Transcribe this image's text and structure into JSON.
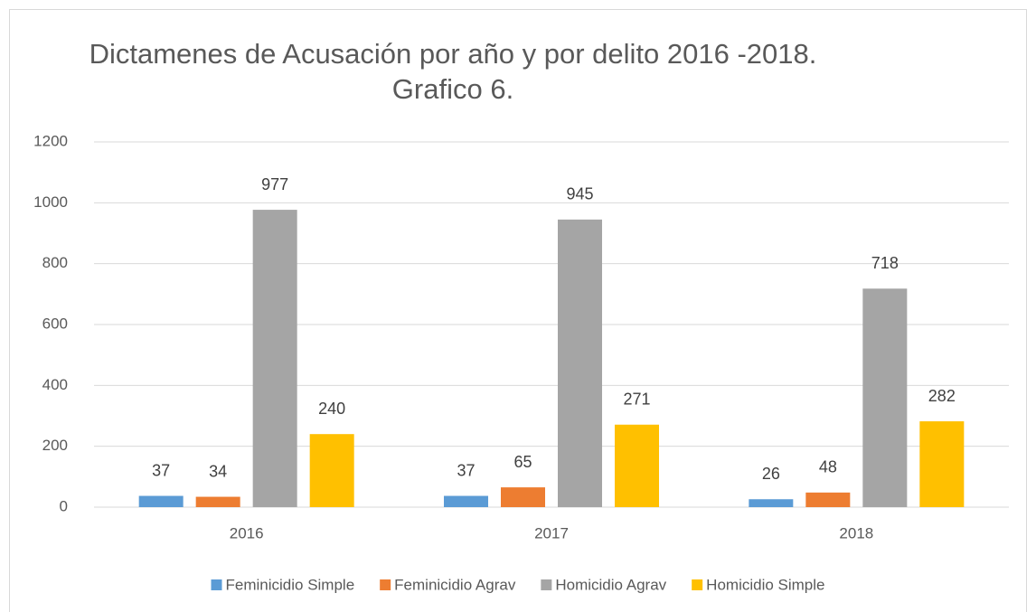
{
  "chart_data": {
    "type": "bar",
    "title": [
      "Dictamenes de Acusación por año y por delito 2016 -2018.",
      "Grafico 6."
    ],
    "categories": [
      "2016",
      "2017",
      "2018"
    ],
    "series": [
      {
        "name": "Feminicidio Simple",
        "color": "#5b9bd5",
        "values": [
          37,
          37,
          26
        ]
      },
      {
        "name": "Feminicidio Agrav",
        "color": "#ed7d31",
        "values": [
          34,
          65,
          48
        ]
      },
      {
        "name": "Homicidio Agrav",
        "color": "#a5a5a5",
        "values": [
          977,
          945,
          718
        ]
      },
      {
        "name": "Homicidio Simple",
        "color": "#ffc000",
        "values": [
          240,
          271,
          282
        ]
      }
    ],
    "ylim": [
      0,
      1200
    ],
    "yticks": [
      0,
      200,
      400,
      600,
      800,
      1000,
      1200
    ],
    "grid": true,
    "legend": "bottom"
  }
}
